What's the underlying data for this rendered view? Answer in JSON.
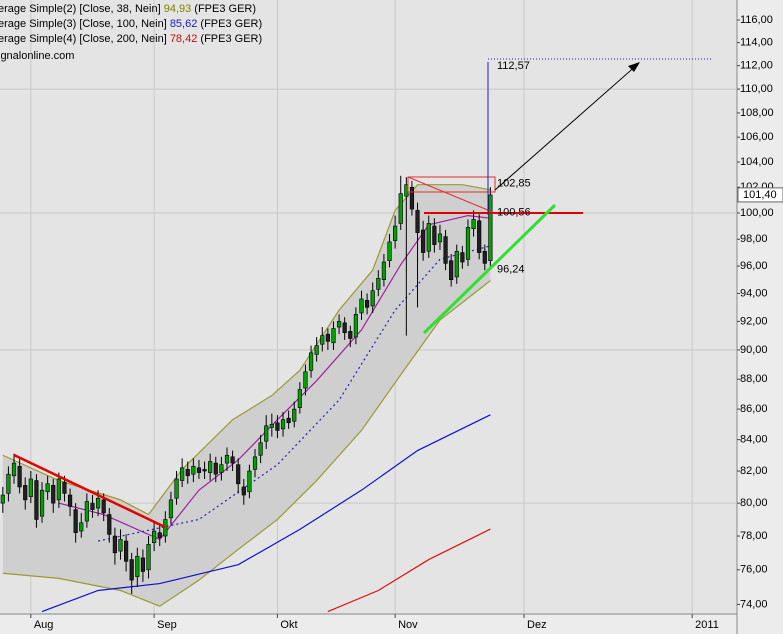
{
  "chart_data": {
    "type": "candlestick",
    "log_y": true,
    "ylim": [
      73.46,
      117.8
    ],
    "xlim": [
      -0.5,
      131
    ],
    "yticks": [
      {
        "value": 74,
        "label": "74,00"
      },
      {
        "value": 76,
        "label": "76,00"
      },
      {
        "value": 78,
        "label": "78,00"
      },
      {
        "value": 80,
        "label": "80,00"
      },
      {
        "value": 82,
        "label": "82,00"
      },
      {
        "value": 84,
        "label": "84,00"
      },
      {
        "value": 86,
        "label": "86,00"
      },
      {
        "value": 88,
        "label": "88,00"
      },
      {
        "value": 90,
        "label": "90,00"
      },
      {
        "value": 92,
        "label": "92,00"
      },
      {
        "value": 94,
        "label": "94,00"
      },
      {
        "value": 96,
        "label": "96,00"
      },
      {
        "value": 98,
        "label": "98,00"
      },
      {
        "value": 100,
        "label": "100,00"
      },
      {
        "value": 102,
        "label": "102,00"
      },
      {
        "value": 104,
        "label": "104,00"
      },
      {
        "value": 106,
        "label": "106,00"
      },
      {
        "value": 108,
        "label": "108,00"
      },
      {
        "value": 110,
        "label": "110,00"
      },
      {
        "value": 112,
        "label": "112,00"
      },
      {
        "value": 114,
        "label": "114,00"
      },
      {
        "value": 116,
        "label": "116,00"
      }
    ],
    "ygrid": [
      80,
      90,
      100,
      110
    ],
    "xticks": [
      {
        "value": 5,
        "label": "Aug"
      },
      {
        "value": 27,
        "label": "Sep"
      },
      {
        "value": 49,
        "label": "Okt"
      },
      {
        "value": 70,
        "label": "Nov"
      },
      {
        "value": 93,
        "label": "Dez"
      },
      {
        "value": 123,
        "label": "2011"
      }
    ],
    "candles": {
      "up_color": "#00a000",
      "down_color": "#202020",
      "open": [
        80.0,
        80.6,
        81.7,
        82.3,
        81.1,
        80.4,
        81.4,
        79.2,
        80.7,
        81.1,
        80.2,
        81.3,
        80.5,
        79.6,
        78.3,
        78.9,
        80.0,
        79.7,
        80.2,
        79.3,
        78.0,
        77.1,
        77.7,
        76.6,
        75.6,
        76.7,
        76.0,
        77.6,
        78.2,
        78.0,
        79.1,
        80.3,
        81.4,
        82.1,
        81.8,
        82.2,
        82.1,
        81.9,
        82.5,
        81.9,
        82.5,
        82.9,
        82.4,
        81.0,
        80.7,
        82.1,
        83.0,
        83.9,
        84.8,
        85.1,
        84.7,
        85.4,
        85.2,
        86.1,
        87.4,
        88.6,
        89.7,
        90.4,
        91.1,
        90.5,
        91.6,
        91.9,
        91.3,
        90.9,
        92.6,
        93.5,
        93.1,
        94.3,
        95.0,
        96.4,
        97.9,
        99.2,
        101.3,
        102.0,
        100.2,
        98.7,
        97.1,
        99.0,
        97.8,
        98.2,
        96.4,
        95.2,
        97.0,
        96.5,
        98.8,
        99.4,
        97.1,
        96.4
      ],
      "high": [
        81.0,
        82.3,
        83.1,
        82.8,
        81.6,
        82.0,
        81.8,
        81.3,
        81.7,
        81.5,
        81.9,
        81.7,
        80.9,
        80.0,
        79.4,
        80.6,
        80.5,
        80.8,
        80.6,
        79.7,
        78.5,
        78.4,
        78.1,
        77.0,
        77.3,
        77.2,
        78.0,
        78.8,
        78.7,
        79.5,
        80.7,
        82.0,
        82.8,
        82.6,
        82.8,
        82.7,
        82.6,
        83.1,
        82.9,
        82.9,
        83.5,
        83.3,
        82.8,
        81.5,
        82.4,
        83.4,
        84.3,
        85.6,
        85.7,
        85.6,
        85.8,
        85.9,
        86.5,
        87.8,
        89.0,
        90.3,
        90.9,
        91.6,
        91.5,
        92.0,
        92.5,
        92.3,
        91.7,
        93.0,
        94.2,
        94.0,
        94.8,
        95.7,
        96.9,
        98.4,
        99.8,
        102.9,
        102.8,
        102.5,
        100.8,
        99.4,
        99.8,
        99.6,
        99.1,
        98.7,
        96.9,
        97.6,
        97.5,
        99.5,
        100.2,
        99.9,
        97.6,
        102.0
      ],
      "low": [
        79.4,
        80.1,
        81.2,
        80.6,
        79.6,
        80.0,
        78.5,
        78.8,
        80.2,
        79.4,
        79.7,
        80.1,
        79.2,
        77.6,
        77.9,
        78.5,
        79.1,
        79.2,
        78.9,
        77.6,
        76.3,
        76.6,
        75.9,
        74.6,
        75.0,
        75.3,
        75.5,
        77.1,
        77.4,
        77.6,
        78.7,
        79.9,
        81.0,
        81.2,
        81.3,
        81.5,
        81.5,
        81.4,
        81.3,
        81.4,
        82.0,
        82.0,
        80.6,
        79.9,
        80.3,
        81.6,
        82.5,
        83.4,
        84.2,
        84.1,
        84.2,
        84.7,
        84.8,
        85.7,
        86.9,
        88.1,
        89.2,
        89.9,
        90.0,
        90.0,
        91.1,
        90.7,
        90.2,
        90.4,
        92.1,
        92.5,
        92.6,
        93.8,
        94.5,
        95.9,
        97.3,
        98.7,
        91.0,
        99.8,
        93.0,
        96.4,
        96.6,
        97.0,
        97.2,
        95.7,
        94.5,
        94.7,
        95.8,
        96.0,
        98.2,
        96.5,
        95.7,
        95.9
      ],
      "close": [
        80.5,
        81.8,
        82.5,
        81.0,
        80.2,
        81.5,
        79.0,
        80.8,
        81.2,
        80.0,
        81.5,
        80.6,
        79.8,
        78.2,
        78.8,
        80.1,
        79.6,
        80.3,
        79.4,
        78.1,
        77.0,
        77.8,
        76.5,
        75.4,
        76.8,
        75.9,
        77.5,
        78.3,
        77.9,
        79.0,
        80.2,
        81.5,
        82.2,
        81.7,
        82.3,
        81.9,
        82.0,
        82.6,
        81.8,
        82.4,
        83.0,
        82.5,
        81.2,
        80.5,
        82.0,
        82.9,
        83.8,
        84.9,
        85.0,
        84.6,
        85.3,
        85.1,
        86.0,
        87.3,
        88.5,
        89.8,
        90.3,
        91.0,
        90.6,
        91.5,
        92.0,
        91.2,
        90.8,
        92.5,
        93.6,
        93.0,
        94.2,
        95.1,
        96.3,
        97.8,
        99.0,
        101.5,
        102.2,
        100.3,
        98.5,
        97.0,
        99.2,
        97.6,
        98.4,
        96.2,
        95.0,
        97.1,
        96.3,
        98.9,
        99.5,
        97.0,
        96.2,
        101.4
      ]
    },
    "lines": [
      {
        "color": "#9a9a30",
        "fill": "#cfcfcf",
        "x": [
          0,
          10,
          21,
          26,
          32,
          41,
          48,
          53,
          60,
          66,
          70,
          74,
          82,
          87
        ],
        "values": [
          83.0,
          81.4,
          80.2,
          79.3,
          82.1,
          85.3,
          86.9,
          88.6,
          92.8,
          95.7,
          100.2,
          102.2,
          102.2,
          101.8
        ]
      },
      {
        "color": "#9a9a30",
        "x": [
          0,
          10,
          21,
          28,
          35,
          42,
          49,
          56,
          64,
          71,
          78,
          87
        ],
        "values": [
          75.8,
          75.5,
          74.8,
          73.9,
          75.4,
          77.2,
          79.0,
          81.4,
          84.6,
          88.3,
          92.1,
          94.93
        ]
      },
      {
        "color": "#a020a0",
        "x": [
          10,
          18,
          28,
          35,
          42,
          49,
          56,
          64,
          71,
          76,
          83,
          87
        ],
        "values": [
          80.0,
          79.3,
          77.8,
          80.8,
          82.7,
          85.3,
          87.9,
          91.4,
          96.1,
          99.1,
          99.8,
          99.6
        ]
      },
      {
        "color": "#2020c0",
        "dash": "2,3",
        "x": [
          17,
          35,
          49,
          60,
          70,
          78,
          87
        ],
        "values": [
          77.7,
          79.0,
          82.4,
          86.6,
          92.8,
          96.5,
          97.5
        ]
      },
      {
        "color": "#1010d0",
        "x": [
          7,
          17,
          28,
          42,
          53,
          64,
          74,
          87
        ],
        "values": [
          73.6,
          74.8,
          75.2,
          76.3,
          78.4,
          80.8,
          83.3,
          85.62
        ]
      },
      {
        "color": "#e01010",
        "x": [
          58,
          67,
          76,
          87
        ],
        "values": [
          73.6,
          74.8,
          76.6,
          78.42
        ]
      }
    ],
    "annotations": [
      {
        "value": 112.57,
        "label": "112,57",
        "color": "#2020c0",
        "dotted": true
      },
      {
        "value": 102.85,
        "label": "102,85",
        "color": "#d01010"
      },
      {
        "value": 100.56,
        "label": "100,56",
        "color": "#d01010"
      },
      {
        "value": 96.24,
        "label": "96,24",
        "color": "#20d020"
      }
    ],
    "last_price": {
      "value": 101.4,
      "label": "101,40"
    },
    "legend": [
      {
        "text": "erage Simple(2) [Close, 38, Nein]",
        "value_label": "94,93",
        "suffix": "(FPE3 GER)",
        "color": "#808000"
      },
      {
        "text": "erage Simple(3) [Close, 100, Nein]",
        "value_label": "85,62",
        "suffix": "(FPE3 GER)",
        "color": "#2020c0"
      },
      {
        "text": "erage Simple(4) [Close, 200, Nein]",
        "value_label": "78,42",
        "suffix": "(FPE3 GER)",
        "color": "#c01010"
      }
    ],
    "source": "ignalonline.com"
  }
}
